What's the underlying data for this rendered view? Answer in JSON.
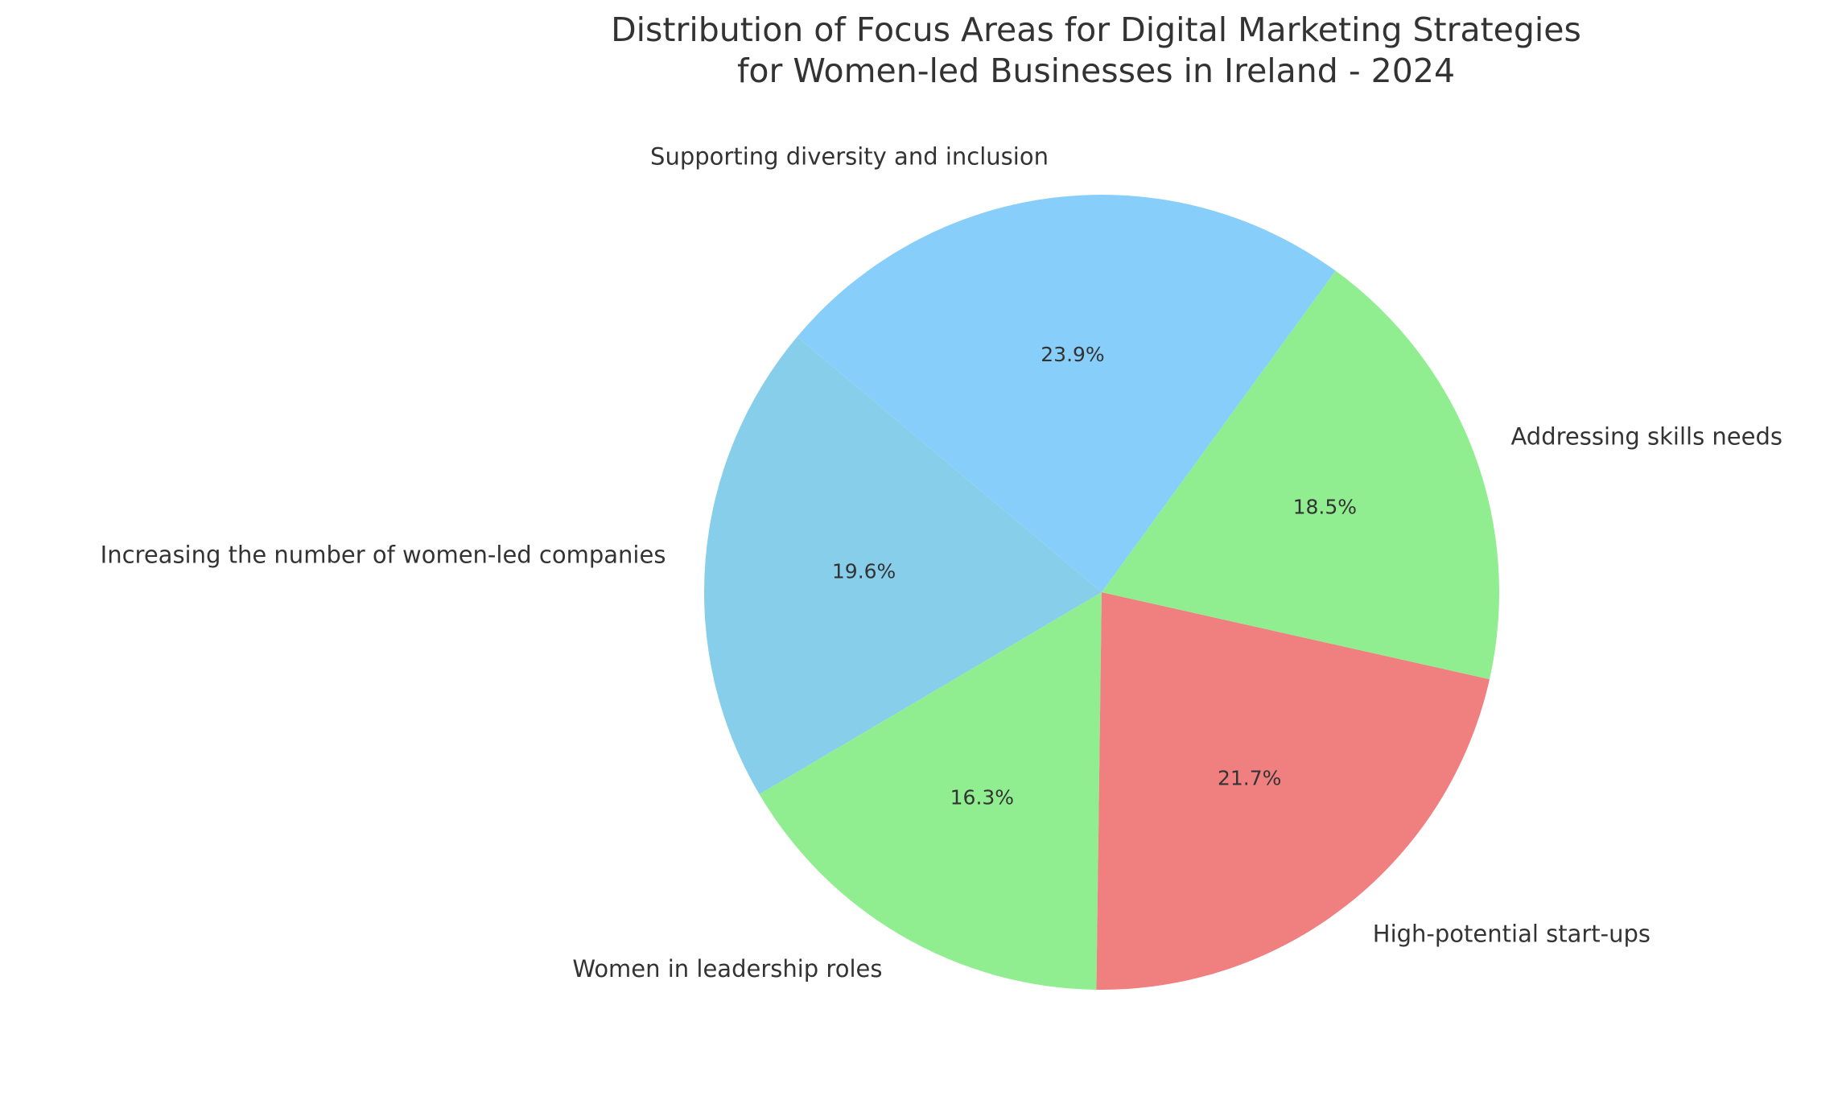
{
  "chart_data": {
    "type": "pie",
    "title": "Distribution of Focus Areas for Digital Marketing Strategies\nfor Women-led Businesses in Ireland - 2024",
    "categories": [
      "Increasing the number of women-led companies",
      "Women in leadership roles",
      "High-potential start-ups",
      "Addressing skills needs",
      "Supporting diversity and inclusion"
    ],
    "values": [
      19.6,
      16.3,
      21.7,
      18.5,
      23.9
    ],
    "value_labels": [
      "19.6%",
      "16.3%",
      "21.7%",
      "18.5%",
      "23.9%"
    ],
    "colors": [
      "#87ceeb",
      "#90ee90",
      "#f08080",
      "#90ee90",
      "#87cefa"
    ]
  }
}
